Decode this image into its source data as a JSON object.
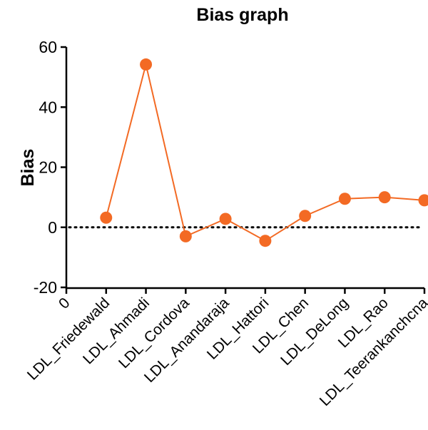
{
  "chart_data": {
    "type": "line",
    "title": "Bias graph",
    "xlabel": "",
    "ylabel": "Bias",
    "ylim": [
      -20,
      60
    ],
    "yticks": [
      -20,
      0,
      20,
      40,
      60
    ],
    "x_origin_label": "0",
    "grid": false,
    "legend": "none",
    "reference_line": {
      "y": 0,
      "style": "dotted"
    },
    "categories": [
      "LDL_Friedewald",
      "LDL_Ahmadi",
      "LDL_Cordova",
      "LDL_Anandaraja",
      "LDL_Hattori",
      "LDL_Chen",
      "LDL_DeLong",
      "LDL_Rao",
      "LDL_Teerankanchcna"
    ],
    "series": [
      {
        "values": [
          3.2,
          54.2,
          -3.0,
          2.8,
          -4.5,
          3.8,
          9.5,
          10.0,
          9.0
        ],
        "color": "#F36A24"
      }
    ]
  }
}
